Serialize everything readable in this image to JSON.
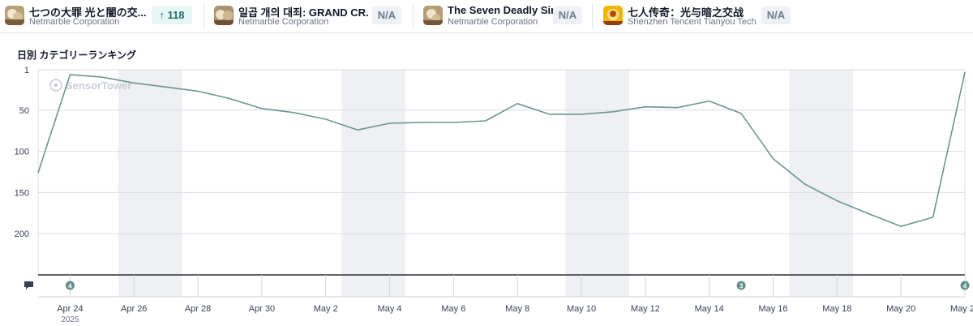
{
  "apps": [
    {
      "name": "七つの大罪 光と闇の交...",
      "publisher": "Netmarble Corporation",
      "badge": "↑ 118",
      "badge_type": "up",
      "icon": "app-icon-seven-deadly-sins-jp"
    },
    {
      "name": "일곱 개의 대죄: GRAND CR...",
      "publisher": "Netmarble Corporation",
      "badge": "N/A",
      "badge_type": "na",
      "icon": "app-icon-seven-deadly-sins-kr"
    },
    {
      "name": "The Seven Deadly Sins",
      "publisher": "Netmarble Corporation",
      "badge": "N/A",
      "badge_type": "na",
      "icon": "app-icon-seven-deadly-sins-en"
    },
    {
      "name": "七人传奇：光与暗之交战",
      "publisher": "Shenzhen Tencent Tianyou Tech...",
      "badge": "N/A",
      "badge_type": "na",
      "icon": "app-icon-seven-deadly-sins-cn"
    }
  ],
  "chart_title": "日別 カテゴリーランキング",
  "watermark": "SensorTower",
  "colors": {
    "line": "#6b9690",
    "band": "#eef0f3",
    "grid": "#d9dde3",
    "marker": "#5f8f8a"
  },
  "chart_data": {
    "type": "line",
    "title": "日別 カテゴリーランキング",
    "y_inverted": true,
    "ylim": [
      1,
      250
    ],
    "yticks": [
      1,
      50,
      100,
      150,
      200
    ],
    "x_start": "2025-04-23",
    "x_end": "2025-05-22",
    "x_tick_labels": [
      "Apr 24",
      "Apr 26",
      "Apr 28",
      "Apr 30",
      "May 2",
      "May 4",
      "May 6",
      "May 8",
      "May 10",
      "May 12",
      "May 14",
      "May 16",
      "May 18",
      "May 20",
      "May 22"
    ],
    "x_year_label": "2025",
    "weekend_bands": [
      [
        "Apr 26",
        "Apr 27"
      ],
      [
        "May 3",
        "May 4"
      ],
      [
        "May 10",
        "May 11"
      ],
      [
        "May 17",
        "May 18"
      ]
    ],
    "series": [
      {
        "dates": [
          "Apr 23",
          "Apr 24",
          "Apr 25",
          "Apr 26",
          "Apr 27",
          "Apr 28",
          "Apr 29",
          "Apr 30",
          "May 1",
          "May 2",
          "May 3",
          "May 4",
          "May 5",
          "May 6",
          "May 7",
          "May 8",
          "May 9",
          "May 10",
          "May 11",
          "May 12",
          "May 13",
          "May 14",
          "May 15",
          "May 16",
          "May 17",
          "May 18",
          "May 19",
          "May 20",
          "May 21",
          "May 22"
        ],
        "values": [
          126,
          7,
          10,
          17,
          22,
          27,
          36,
          48,
          53,
          61,
          74,
          66,
          65,
          65,
          63,
          42,
          55,
          55,
          52,
          46,
          47,
          39,
          54,
          109,
          140,
          160,
          176,
          191,
          180,
          4
        ]
      }
    ],
    "event_markers": [
      {
        "date": "Apr 24",
        "label": "4"
      },
      {
        "date": "May 15",
        "label": "3"
      },
      {
        "date": "May 22",
        "label": "4"
      }
    ]
  }
}
